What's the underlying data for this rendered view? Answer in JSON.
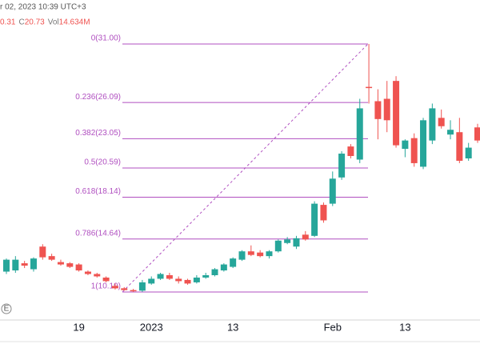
{
  "header": {
    "datetime": "r 02, 2023 10:39 UTC+3",
    "ohlc": [
      "0.31",
      "C",
      "20.73",
      "Vol",
      "14.634M"
    ]
  },
  "chart_data": {
    "type": "candlestick",
    "categories": [
      null,
      null,
      null,
      null,
      null,
      null,
      null,
      null,
      "19",
      null,
      null,
      null,
      null,
      null,
      null,
      null,
      "2023",
      null,
      null,
      null,
      null,
      null,
      null,
      null,
      null,
      "13",
      null,
      null,
      null,
      null,
      null,
      null,
      null,
      null,
      null,
      null,
      "Feb",
      null,
      null,
      null,
      null,
      null,
      null,
      null,
      "13",
      null,
      null,
      null,
      null,
      null,
      null,
      null,
      null
    ],
    "open": [
      11.9,
      12.0,
      12.6,
      12.1,
      14.0,
      13.2,
      12.7,
      12.6,
      12.5,
      11.9,
      11.7,
      11.4,
      10.7,
      10.5,
      10.35,
      10.3,
      10.9,
      11.3,
      11.6,
      11.3,
      11.2,
      11.0,
      11.4,
      11.6,
      12.0,
      12.3,
      12.9,
      13.6,
      13.5,
      13.2,
      13.6,
      14.3,
      14.0,
      15.0,
      14.9,
      17.5,
      17.6,
      19.8,
      22.4,
      21.3,
      27.4,
      26.2,
      26.4,
      27.9,
      22.2,
      23.1,
      20.7,
      22.9,
      24.8,
      23.4,
      23.6,
      21.4,
      24.0
    ],
    "high": [
      13.0,
      13.2,
      12.8,
      13.1,
      14.2,
      13.4,
      12.9,
      12.7,
      12.6,
      12.0,
      11.8,
      11.5,
      10.9,
      10.6,
      10.45,
      11.2,
      11.5,
      11.8,
      11.8,
      11.5,
      11.3,
      11.6,
      11.8,
      12.2,
      12.6,
      13.1,
      13.7,
      14.1,
      13.7,
      13.7,
      14.6,
      14.8,
      14.9,
      15.3,
      17.8,
      17.7,
      20.3,
      22.0,
      22.6,
      26.4,
      31.0,
      27.2,
      27.9,
      28.3,
      23.0,
      23.5,
      24.8,
      26.0,
      25.5,
      24.6,
      24.8,
      22.7,
      24.3
    ],
    "low": [
      11.7,
      11.8,
      12.2,
      11.9,
      12.9,
      12.8,
      12.4,
      12.2,
      11.9,
      11.6,
      11.4,
      11.0,
      10.4,
      10.3,
      10.19,
      10.2,
      10.8,
      11.2,
      11.2,
      10.9,
      10.8,
      10.9,
      11.3,
      11.5,
      11.9,
      12.2,
      12.8,
      13.2,
      13.1,
      13.0,
      13.5,
      14.2,
      13.8,
      14.5,
      14.8,
      16.0,
      17.4,
      19.6,
      21.4,
      21.0,
      26.0,
      23.0,
      23.6,
      22.3,
      21.5,
      20.7,
      20.5,
      22.6,
      23.9,
      23.0,
      21.0,
      21.2,
      22.7
    ],
    "close": [
      12.9,
      12.9,
      12.4,
      13.0,
      13.1,
      12.9,
      12.5,
      12.3,
      12.0,
      11.7,
      11.5,
      11.1,
      10.5,
      10.35,
      10.25,
      11.0,
      11.3,
      11.7,
      11.3,
      11.1,
      10.9,
      11.4,
      11.6,
      12.1,
      12.5,
      13.0,
      13.6,
      13.3,
      13.2,
      13.6,
      14.5,
      14.6,
      14.7,
      14.6,
      17.6,
      16.2,
      19.7,
      21.8,
      21.6,
      25.6,
      27.3,
      24.7,
      24.6,
      22.5,
      22.9,
      21.0,
      24.6,
      25.6,
      24.1,
      23.8,
      21.2,
      22.3,
      22.9
    ],
    "up_color": "#26a69a",
    "down_color": "#ef5350",
    "ylim": [
      7.84,
      34.69
    ],
    "fib_levels": [
      {
        "value": 31.0,
        "label": "0(31.00)"
      },
      {
        "value": 26.09,
        "label": "0.236(26.09)"
      },
      {
        "value": 23.05,
        "label": "0.382(23.05)"
      },
      {
        "value": 20.59,
        "label": "0.5(20.59)"
      },
      {
        "value": 18.14,
        "label": "0.618(18.14)"
      },
      {
        "value": 14.64,
        "label": "0.786(14.64)"
      },
      {
        "value": 10.19,
        "label": "1(10.19)"
      }
    ],
    "fib_color": "#b04fc0",
    "event_marker": "E"
  }
}
